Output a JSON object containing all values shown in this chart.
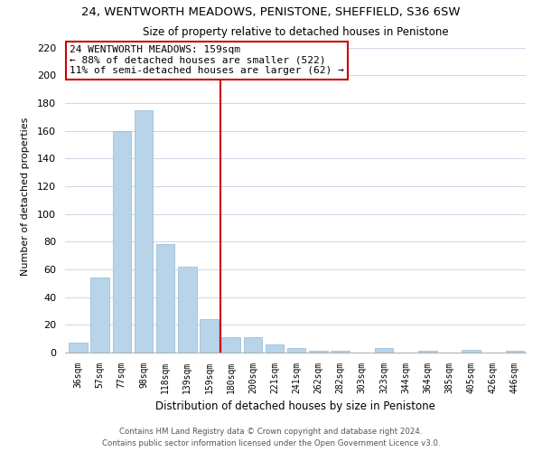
{
  "title": "24, WENTWORTH MEADOWS, PENISTONE, SHEFFIELD, S36 6SW",
  "subtitle": "Size of property relative to detached houses in Penistone",
  "xlabel": "Distribution of detached houses by size in Penistone",
  "ylabel": "Number of detached properties",
  "bar_values": [
    7,
    54,
    160,
    175,
    78,
    62,
    24,
    11,
    11,
    6,
    3,
    1,
    1,
    0,
    3,
    0,
    1,
    0,
    2,
    0,
    1
  ],
  "bar_labels": [
    "36sqm",
    "57sqm",
    "77sqm",
    "98sqm",
    "118sqm",
    "139sqm",
    "159sqm",
    "180sqm",
    "200sqm",
    "221sqm",
    "241sqm",
    "262sqm",
    "282sqm",
    "303sqm",
    "323sqm",
    "344sqm",
    "364sqm",
    "385sqm",
    "405sqm",
    "426sqm",
    "446sqm"
  ],
  "bar_color": "#b8d4e8",
  "bar_edge_color": "#90b8d8",
  "highlight_line_color": "#cc0000",
  "annotation_text": "24 WENTWORTH MEADOWS: 159sqm\n← 88% of detached houses are smaller (522)\n11% of semi-detached houses are larger (62) →",
  "annotation_box_color": "#ffffff",
  "annotation_box_edge": "#cc0000",
  "ylim": [
    0,
    225
  ],
  "yticks": [
    0,
    20,
    40,
    60,
    80,
    100,
    120,
    140,
    160,
    180,
    200,
    220
  ],
  "footer_line1": "Contains HM Land Registry data © Crown copyright and database right 2024.",
  "footer_line2": "Contains public sector information licensed under the Open Government Licence v3.0.",
  "bg_color": "#ffffff",
  "grid_color": "#ccd8e8",
  "highlight_bar_index": 6
}
